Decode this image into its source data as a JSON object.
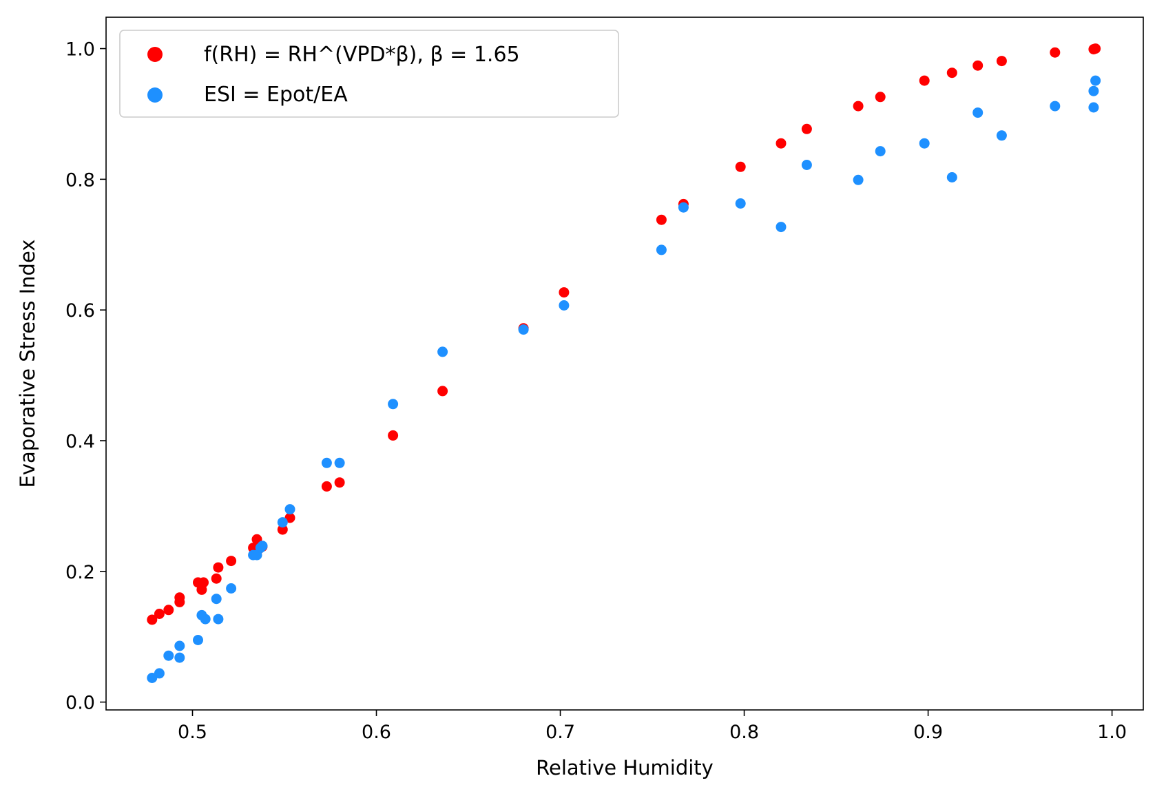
{
  "chart_data": {
    "type": "scatter",
    "title": "",
    "xlabel": "Relative Humidity",
    "ylabel": "Evaporative Stress Index",
    "xlim": [
      0.453,
      1.017
    ],
    "ylim": [
      -0.012,
      1.048
    ],
    "xticks": [
      0.5,
      0.6,
      0.7,
      0.8,
      0.9,
      1.0
    ],
    "xtick_labels": [
      "0.5",
      "0.6",
      "0.7",
      "0.8",
      "0.9",
      "1.0"
    ],
    "yticks": [
      0.0,
      0.2,
      0.4,
      0.6,
      0.8,
      1.0
    ],
    "ytick_labels": [
      "0.0",
      "0.2",
      "0.4",
      "0.6",
      "0.8",
      "1.0"
    ],
    "grid": false,
    "legend_position": "upper-left",
    "series": [
      {
        "name": "f(RH) = RH^(VPD*β), β = 1.65",
        "color": "#ff0000",
        "x": [
          0.478,
          0.482,
          0.487,
          0.493,
          0.493,
          0.503,
          0.505,
          0.506,
          0.513,
          0.514,
          0.521,
          0.533,
          0.535,
          0.536,
          0.538,
          0.549,
          0.553,
          0.573,
          0.58,
          0.609,
          0.636,
          0.68,
          0.702,
          0.755,
          0.767,
          0.798,
          0.82,
          0.834,
          0.862,
          0.874,
          0.898,
          0.913,
          0.927,
          0.94,
          0.969,
          0.99,
          0.991
        ],
        "y": [
          0.126,
          0.135,
          0.141,
          0.153,
          0.16,
          0.183,
          0.172,
          0.183,
          0.189,
          0.206,
          0.216,
          0.236,
          0.249,
          0.234,
          0.238,
          0.264,
          0.282,
          0.33,
          0.336,
          0.408,
          0.476,
          0.572,
          0.627,
          0.738,
          0.762,
          0.819,
          0.855,
          0.877,
          0.912,
          0.926,
          0.951,
          0.963,
          0.974,
          0.981,
          0.994,
          0.999,
          1.0
        ]
      },
      {
        "name": "ESI = Epot/EA",
        "color": "#1e90ff",
        "x": [
          0.478,
          0.482,
          0.487,
          0.493,
          0.493,
          0.503,
          0.505,
          0.507,
          0.513,
          0.514,
          0.521,
          0.533,
          0.535,
          0.537,
          0.538,
          0.549,
          0.553,
          0.573,
          0.58,
          0.609,
          0.636,
          0.68,
          0.702,
          0.755,
          0.767,
          0.798,
          0.82,
          0.834,
          0.862,
          0.874,
          0.898,
          0.913,
          0.927,
          0.94,
          0.969,
          0.99,
          0.99,
          0.991
        ],
        "y": [
          0.037,
          0.044,
          0.071,
          0.086,
          0.068,
          0.095,
          0.133,
          0.127,
          0.158,
          0.127,
          0.174,
          0.225,
          0.225,
          0.236,
          0.239,
          0.275,
          0.295,
          0.366,
          0.366,
          0.456,
          0.536,
          0.57,
          0.607,
          0.692,
          0.757,
          0.763,
          0.727,
          0.822,
          0.799,
          0.843,
          0.855,
          0.803,
          0.902,
          0.867,
          0.912,
          0.935,
          0.91,
          0.951
        ]
      }
    ]
  }
}
